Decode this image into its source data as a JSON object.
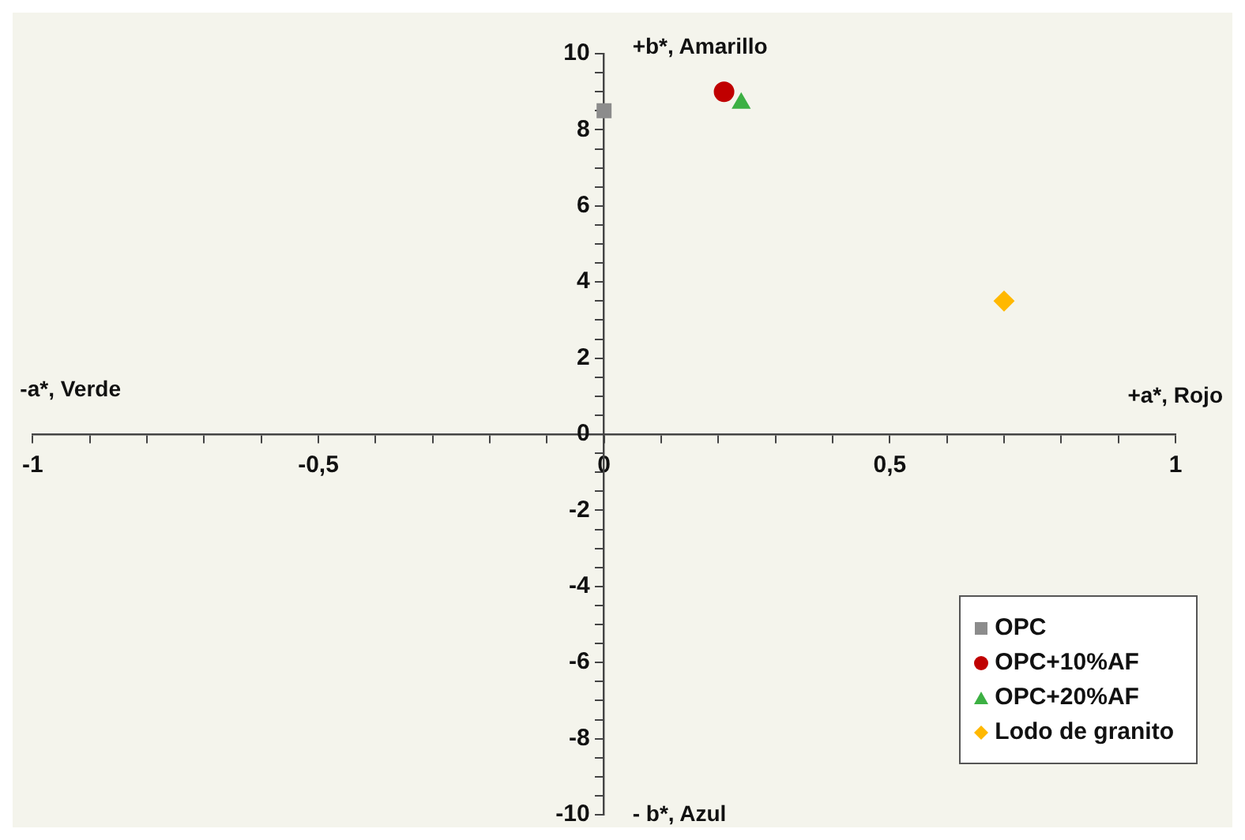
{
  "chart_data": {
    "type": "scatter",
    "xlim": [
      -1,
      1
    ],
    "xticks": [
      -1,
      {
        "value": -0.9,
        "label": null
      },
      {
        "value": -0.8,
        "label": null
      },
      {
        "value": -0.7,
        "label": null
      },
      {
        "value": -0.6,
        "label": null
      },
      {
        "value": -0.5,
        "label": "-0,5"
      },
      {
        "value": -0.4,
        "label": null
      },
      {
        "value": -0.3,
        "label": null
      },
      {
        "value": -0.2,
        "label": null
      },
      {
        "value": -0.1,
        "label": null
      },
      0,
      {
        "value": 0.1,
        "label": null
      },
      {
        "value": 0.2,
        "label": null
      },
      {
        "value": 0.3,
        "label": null
      },
      {
        "value": 0.4,
        "label": null
      },
      {
        "value": 0.5,
        "label": "0,5"
      },
      {
        "value": 0.6,
        "label": null
      },
      {
        "value": 0.7,
        "label": null
      },
      {
        "value": 0.8,
        "label": null
      },
      {
        "value": 0.9,
        "label": null
      },
      1
    ],
    "ylim": [
      -10,
      10
    ],
    "yticks": [
      -10,
      {
        "value": -9.5,
        "label": null
      },
      {
        "value": -9,
        "label": null
      },
      {
        "value": -8.5,
        "label": null
      },
      -8,
      {
        "value": -7.5,
        "label": null
      },
      {
        "value": -7,
        "label": null
      },
      {
        "value": -6.5,
        "label": null
      },
      -6,
      {
        "value": -5.5,
        "label": null
      },
      {
        "value": -5,
        "label": null
      },
      {
        "value": -4.5,
        "label": null
      },
      -4,
      {
        "value": -3.5,
        "label": null
      },
      {
        "value": -3,
        "label": null
      },
      {
        "value": -2.5,
        "label": null
      },
      -2,
      {
        "value": -1.5,
        "label": null
      },
      {
        "value": -1,
        "label": null
      },
      {
        "value": -0.5,
        "label": null
      },
      0,
      {
        "value": 0.5,
        "label": null
      },
      {
        "value": 1,
        "label": null
      },
      {
        "value": 1.5,
        "label": null
      },
      2,
      {
        "value": 2.5,
        "label": null
      },
      {
        "value": 3,
        "label": null
      },
      {
        "value": 3.5,
        "label": null
      },
      4,
      {
        "value": 4.5,
        "label": null
      },
      {
        "value": 5,
        "label": null
      },
      {
        "value": 5.5,
        "label": null
      },
      6,
      {
        "value": 6.5,
        "label": null
      },
      {
        "value": 7,
        "label": null
      },
      {
        "value": 7.5,
        "label": null
      },
      8,
      {
        "value": 8.5,
        "label": null
      },
      {
        "value": 9,
        "label": null
      },
      {
        "value": 9.5,
        "label": null
      },
      10
    ],
    "grid": false,
    "legend": "bottom right",
    "annotations": [
      "+b*, Amarillo",
      "- b*, Azul",
      "-a*, Verde",
      "+a*, Rojo"
    ],
    "series": [
      {
        "name": "OPC",
        "color": "#8c8c8c",
        "marker": "square",
        "x": [
          0
        ],
        "values": [
          8.5
        ]
      },
      {
        "name": "OPC+10%AF",
        "color": "#c00000",
        "marker": "circle",
        "x": [
          0.21
        ],
        "values": [
          9.0
        ]
      },
      {
        "name": "OPC+20%AF",
        "color": "#3cb043",
        "marker": "triangle",
        "x": [
          0.24
        ],
        "values": [
          8.7
        ]
      },
      {
        "name": "Lodo de granito",
        "color": "#ffb800",
        "marker": "diamond",
        "x": [
          0.7
        ],
        "values": [
          3.5
        ]
      }
    ]
  }
}
